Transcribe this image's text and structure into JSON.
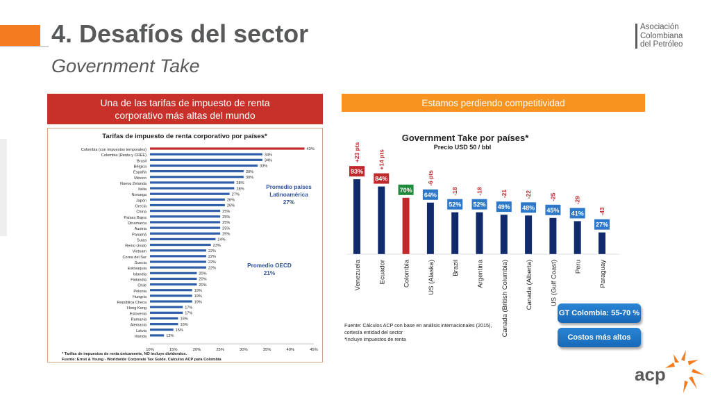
{
  "header": {
    "title": "4. Desafíos del sector",
    "subtitle": "Government Take"
  },
  "logo": {
    "lines": [
      "Asociación",
      "Colombiana",
      "del Petróleo"
    ],
    "footer_mark": "acp"
  },
  "banners": {
    "left": "Una de las tarifas de impuesto de renta corporativo más altas del mundo",
    "right": "Estamos perdiendo competitividad"
  },
  "pills": {
    "gt": "GT Colombia: 55-70 %",
    "costs": "Costos más altos"
  },
  "colors": {
    "accent_orange": "#f7931e",
    "accent_red": "#c8302a",
    "bar_blue": "#2e5fa8",
    "bar_navy": "#112a6b",
    "highlight_red": "#c0282b",
    "label_green": "#1e8b3a"
  },
  "chart_data": [
    {
      "type": "bar",
      "orientation": "horizontal",
      "title": "Tarifas de impuesto de renta corporativo por países*",
      "categories": [
        "Colombia (con impuestos temporales)",
        "Colombia (Renta y CREE)",
        "Brasil",
        "Bélgica",
        "España",
        "México",
        "Nueva Zelanda",
        "Italia",
        "Noruega",
        "Japón",
        "Grecia",
        "China",
        "Países Bajos",
        "Dinamarca",
        "Austria",
        "Panamá",
        "Suiza",
        "Reino Unido",
        "Vietnam",
        "Corea del Sur",
        "Suecia",
        "Eslovaquia",
        "Islandia",
        "Finlandia",
        "Chile",
        "Polonia",
        "Hungría",
        "República Checa",
        "Hong Kong",
        "Eslovenia",
        "Rumania",
        "Alemania",
        "Latvia",
        "Irlanda"
      ],
      "values": [
        43,
        34,
        34,
        33,
        30,
        30,
        28,
        28,
        27,
        26,
        26,
        25,
        25,
        25,
        25,
        25,
        24,
        23,
        22,
        22,
        22,
        22,
        20,
        20,
        20,
        19,
        19,
        19,
        17,
        17,
        16,
        16,
        15,
        13
      ],
      "value_labels": [
        "43%",
        "34%",
        "34%",
        "33%",
        "30%",
        "30%",
        "28%",
        "28%",
        "27%",
        "26%",
        "26%",
        "25%",
        "25%",
        "25%",
        "25%",
        "25%",
        "24%",
        "23%",
        "22%",
        "22%",
        "22%",
        "22%",
        "20%",
        "20%",
        "20%",
        "19%",
        "19%",
        "19%",
        "17%",
        "17%",
        "16%",
        "16%",
        "15%",
        "13%"
      ],
      "highlight_index": 0,
      "xticks": [
        "10%",
        "15%",
        "20%",
        "25%",
        "30%",
        "35%",
        "40%",
        "45%"
      ],
      "xlim": [
        10,
        45
      ],
      "annotations": [
        {
          "lines": [
            "Promedio países",
            "Latinoamérica",
            "27%"
          ]
        },
        {
          "lines": [
            "Promedio OECD",
            "21%"
          ]
        }
      ],
      "footnotes": [
        "* Tarifas de impuestos de renta únicamente, NO incluye dividendos.",
        "Fuente: Ernst & Young - Worldwide Corporate Tax Guide. Cálculos ACP para Colombia"
      ]
    },
    {
      "type": "bar",
      "title": "Government Take por países*",
      "subtitle": "Precio USD 50 / bbl",
      "categories": [
        "Venezuela",
        "Ecuador",
        "Colombia",
        "US (Alaska)",
        "Brazil",
        "Argentina",
        "Canada (British Columbia)",
        "Canada (Alberta)",
        "US (Gulf Coast)",
        "Peru",
        "Paraguay"
      ],
      "values": [
        93,
        84,
        70,
        64,
        52,
        52,
        49,
        48,
        45,
        41,
        27
      ],
      "value_labels": [
        "93%",
        "84%",
        "70%",
        "64%",
        "52%",
        "52%",
        "49%",
        "48%",
        "45%",
        "41%",
        "27%"
      ],
      "diff_labels": [
        "+23 pts",
        "+14 pts",
        "",
        "-6 pts",
        "-18",
        "-18",
        "-21",
        "-22",
        "-25",
        "-29",
        "-43"
      ],
      "highlight_index": 2,
      "ylim": [
        0,
        100
      ],
      "footnotes": [
        "Fuente: Cálculos ACP con base en análisis internacionales (2015),",
        " cortesía entidad del sector",
        "*Incluye impuestos de renta"
      ]
    }
  ]
}
